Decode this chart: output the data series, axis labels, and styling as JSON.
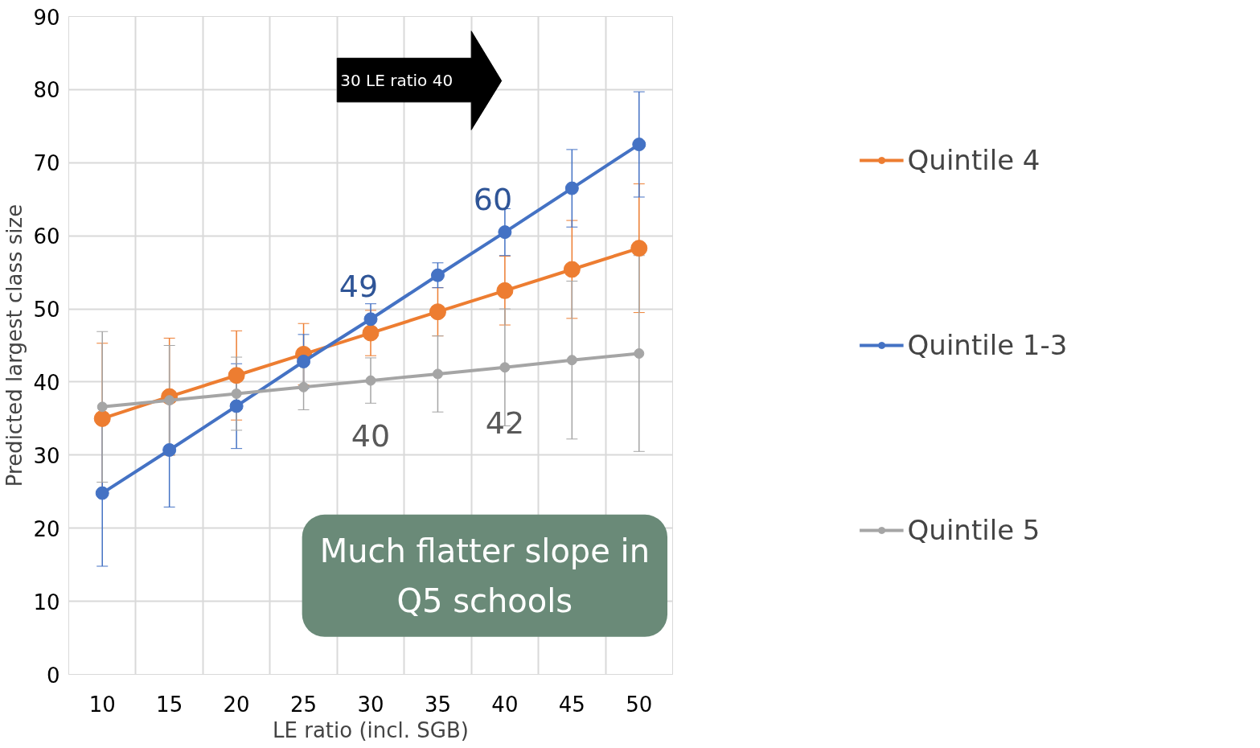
{
  "chart_data": {
    "type": "line",
    "xlabel": "LE ratio (incl. SGB)",
    "ylabel": "Predicted largest class size",
    "categories": [
      "10",
      "15",
      "20",
      "25",
      "30",
      "35",
      "40",
      "45",
      "50"
    ],
    "ylim": [
      0,
      90
    ],
    "yticks": [
      0,
      10,
      20,
      30,
      40,
      50,
      60,
      70,
      80,
      90
    ],
    "grid": true,
    "legend": "right",
    "marker": "circle",
    "line_style": "solid",
    "series": [
      {
        "name": "Quintile 4",
        "color": "#ed7d31",
        "values": [
          35.0,
          38.0,
          40.9,
          43.8,
          46.7,
          49.6,
          52.5,
          55.4,
          58.3
        ],
        "errors": [
          10.3,
          8,
          6.1,
          4.2,
          3.1,
          3.3,
          4.7,
          6.7,
          8.8
        ]
      },
      {
        "name": "Quintile 1-3",
        "color": "#4472c4",
        "values": [
          24.8,
          30.7,
          36.7,
          42.8,
          48.6,
          54.6,
          60.5,
          66.5,
          72.5
        ],
        "errors": [
          10,
          7.8,
          5.8,
          3.7,
          2.1,
          1.7,
          3.2,
          5.3,
          7.2
        ],
        "value_labels": [
          null,
          null,
          null,
          null,
          "49",
          null,
          "60",
          null,
          null
        ]
      },
      {
        "name": "Quintile 5",
        "color": "#a5a5a5",
        "values": [
          36.6,
          37.5,
          38.4,
          39.3,
          40.2,
          41.1,
          42.0,
          43.0,
          43.9
        ],
        "errors": [
          10.3,
          7.5,
          5,
          3.1,
          3.1,
          5.2,
          8,
          10.8,
          13.4
        ],
        "value_labels": [
          null,
          null,
          null,
          null,
          "40",
          null,
          "42",
          null,
          null
        ]
      }
    ],
    "annotations": [
      "30  LE ratio   40",
      "Much flatter slope in Q5 schools"
    ]
  }
}
